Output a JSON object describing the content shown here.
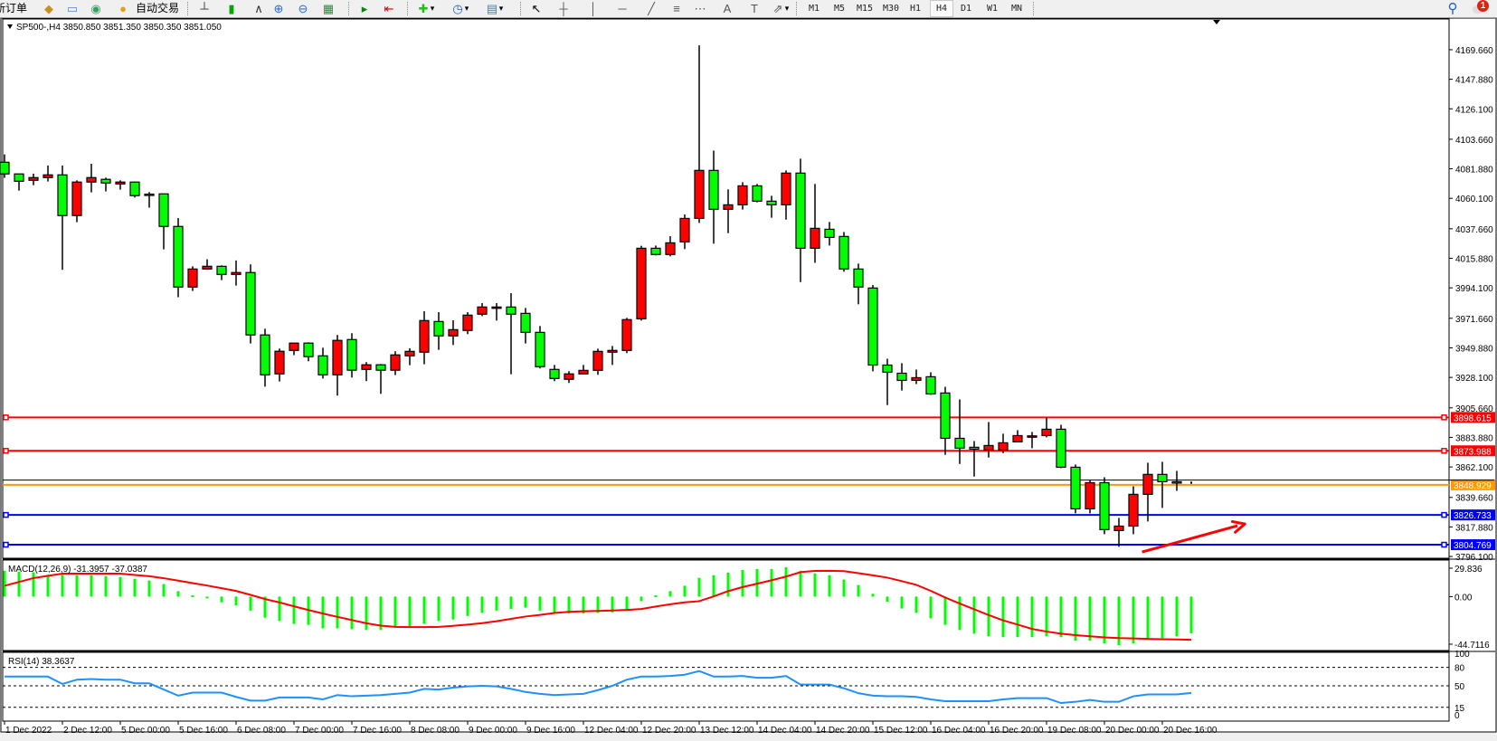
{
  "toolbar": {
    "new_order_label": "新订单",
    "autotrading_label": "自动交易",
    "icons": [
      "new-order-icon",
      "market-watch-icon",
      "navigator-icon",
      "signals-icon",
      "autotrading-icon",
      "bar-chart-icon",
      "candlestick-icon",
      "line-chart-icon",
      "zoom-in-icon",
      "zoom-out-icon",
      "tile-windows-icon",
      "autoscroll-icon",
      "chart-shift-icon",
      "indicators-icon",
      "periods-icon",
      "templates-icon",
      "cursor-icon",
      "crosshair-icon",
      "vertical-line-icon",
      "horizontal-line-icon",
      "trendline-icon",
      "equidistant-channel-icon",
      "fibonacci-icon",
      "text-icon",
      "text-label-icon",
      "arrows-icon",
      "search-icon",
      "notifications-icon"
    ],
    "timeframes": [
      "M1",
      "M5",
      "M15",
      "M30",
      "H1",
      "H4",
      "D1",
      "W1",
      "MN"
    ],
    "active_timeframe": "H4",
    "notification_count": "1"
  },
  "chart_data": {
    "type": "candlestick",
    "symbol_header": "SP500-,H4  3850.850 3851.350 3850.350 3851.050",
    "colors": {
      "bull": "#FF0000",
      "bear": "#00FF00",
      "wick": "#000000",
      "background": "#FFFFFF"
    },
    "ylim": [
      3794.8,
      4192.3
    ],
    "y_ticks": [
      "4169.660",
      "4147.880",
      "4126.100",
      "4103.660",
      "4081.880",
      "4060.100",
      "4037.660",
      "4015.880",
      "3994.100",
      "3971.660",
      "3949.880",
      "3928.100",
      "3905.660",
      "3883.880",
      "3862.100",
      "3839.660",
      "3817.880",
      "3796.100"
    ],
    "x_tick_every_bars": 4,
    "x_ticks": [
      "1 Dec 2022",
      "2 Dec 12:00",
      "5 Dec 00:00",
      "5 Dec 16:00",
      "6 Dec 08:00",
      "7 Dec 00:00",
      "7 Dec 16:00",
      "8 Dec 08:00",
      "9 Dec 00:00",
      "9 Dec 16:00",
      "12 Dec 04:00",
      "12 Dec 20:00",
      "13 Dec 12:00",
      "14 Dec 04:00",
      "14 Dec 20:00",
      "15 Dec 12:00",
      "16 Dec 04:00",
      "16 Dec 20:00",
      "19 Dec 08:00",
      "20 Dec 00:00",
      "20 Dec 16:00"
    ],
    "ohlc": [
      [
        4086.7,
        4092.5,
        4075.2,
        4078.1
      ],
      [
        4078.1,
        4078.1,
        4065.8,
        4072.7
      ],
      [
        4073.4,
        4078.3,
        4069.8,
        4075.4
      ],
      [
        4075.4,
        4084.3,
        4072.5,
        4077.4
      ],
      [
        4077.4,
        4084.3,
        4007.4,
        4047.4
      ],
      [
        4047.4,
        4073.4,
        4042.5,
        4072.1
      ],
      [
        4072.1,
        4085.6,
        4064.5,
        4075.4
      ],
      [
        4074.1,
        4075.4,
        4065.2,
        4071.4
      ],
      [
        4070.7,
        4073.4,
        4066.5,
        4072.1
      ],
      [
        4072.1,
        4072.1,
        4060.7,
        4062.1
      ],
      [
        4063.2,
        4064.7,
        4053.2,
        4063.0
      ],
      [
        4063.4,
        4063.4,
        4022.5,
        4039.4
      ],
      [
        4039.4,
        4045.6,
        3987.2,
        3994.7
      ],
      [
        3994.7,
        4010.0,
        3991.8,
        4008.0
      ],
      [
        4008.0,
        4015.2,
        4007.4,
        4010.0
      ],
      [
        4010.0,
        4010.7,
        3999.8,
        4004.0
      ],
      [
        4004.0,
        4014.3,
        3995.8,
        4005.4
      ],
      [
        4005.4,
        4011.4,
        3953.1,
        3959.4
      ],
      [
        3959.4,
        3964.0,
        3921.3,
        3930.0
      ],
      [
        3930.7,
        3949.4,
        3925.1,
        3947.4
      ],
      [
        3948.0,
        3953.4,
        3944.5,
        3953.4
      ],
      [
        3953.4,
        3954.0,
        3940.0,
        3943.4
      ],
      [
        3944.0,
        3950.0,
        3927.3,
        3930.0
      ],
      [
        3930.0,
        3959.4,
        3914.7,
        3955.4
      ],
      [
        3956.0,
        3960.7,
        3928.0,
        3933.4
      ],
      [
        3934.0,
        3939.4,
        3925.4,
        3937.4
      ],
      [
        3937.4,
        3938.0,
        3916.0,
        3933.4
      ],
      [
        3933.4,
        3947.4,
        3929.8,
        3944.7
      ],
      [
        3944.0,
        3949.6,
        3937.1,
        3947.3
      ],
      [
        3946.7,
        3976.9,
        3937.8,
        3970.0
      ],
      [
        3969.3,
        3976.2,
        3948.4,
        3958.7
      ],
      [
        3958.7,
        3970.2,
        3952.0,
        3963.3
      ],
      [
        3962.7,
        3976.2,
        3960.0,
        3974.0
      ],
      [
        3974.7,
        3982.9,
        3973.3,
        3980.0
      ],
      [
        3980.0,
        3982.9,
        3970.0,
        3980.0
      ],
      [
        3980.0,
        3990.2,
        3930.4,
        3974.7
      ],
      [
        3975.3,
        3979.3,
        3953.1,
        3961.3
      ],
      [
        3961.3,
        3966.0,
        3934.7,
        3936.0
      ],
      [
        3934.0,
        3937.3,
        3925.3,
        3927.3
      ],
      [
        3926.7,
        3932.7,
        3924.0,
        3930.7
      ],
      [
        3930.7,
        3937.3,
        3930.7,
        3933.3
      ],
      [
        3933.3,
        3949.3,
        3930.0,
        3947.3
      ],
      [
        3946.7,
        3951.3,
        3937.3,
        3948.0
      ],
      [
        3948.0,
        3972.0,
        3946.0,
        3970.7
      ],
      [
        3971.3,
        4025.1,
        3970.0,
        4023.3
      ],
      [
        4023.3,
        4025.3,
        4018.0,
        4018.7
      ],
      [
        4018.7,
        4032.2,
        4017.3,
        4027.3
      ],
      [
        4028.0,
        4048.2,
        4022.7,
        4045.3
      ],
      [
        4045.3,
        4172.9,
        4042.0,
        4080.7
      ],
      [
        4080.7,
        4095.3,
        4026.7,
        4052.0
      ],
      [
        4052.0,
        4066.7,
        4034.4,
        4055.3
      ],
      [
        4055.3,
        4072.0,
        4051.8,
        4069.3
      ],
      [
        4069.3,
        4070.7,
        4057.1,
        4058.0
      ],
      [
        4058.0,
        4062.0,
        4045.8,
        4055.3
      ],
      [
        4055.3,
        4080.7,
        4044.4,
        4078.7
      ],
      [
        4078.7,
        4089.3,
        3998.4,
        4023.3
      ],
      [
        4023.3,
        4070.7,
        4012.6,
        4038.0
      ],
      [
        4037.3,
        4042.7,
        4025.3,
        4031.3
      ],
      [
        4032.0,
        4035.3,
        4006.0,
        4008.0
      ],
      [
        4008.0,
        4012.0,
        3982.0,
        3994.7
      ],
      [
        3994.0,
        3996.2,
        3932.6,
        3937.2
      ],
      [
        3937.2,
        3941.9,
        3907.7,
        3931.9
      ],
      [
        3931.2,
        3938.6,
        3918.4,
        3925.9
      ],
      [
        3925.9,
        3933.9,
        3923.2,
        3927.9
      ],
      [
        3928.6,
        3931.9,
        3915.2,
        3915.9
      ],
      [
        3916.6,
        3921.2,
        3871.0,
        3883.2
      ],
      [
        3883.2,
        3911.9,
        3864.3,
        3875.9
      ],
      [
        3876.6,
        3881.2,
        3855.0,
        3875.2
      ],
      [
        3874.6,
        3895.2,
        3869.0,
        3877.9
      ],
      [
        3874.6,
        3886.6,
        3872.3,
        3879.9
      ],
      [
        3880.6,
        3889.2,
        3880.6,
        3885.2
      ],
      [
        3885.0,
        3887.9,
        3875.9,
        3885.0
      ],
      [
        3885.2,
        3898.4,
        3883.9,
        3889.9
      ],
      [
        3889.9,
        3893.2,
        3861.2,
        3861.9
      ],
      [
        3861.9,
        3863.9,
        3827.9,
        3831.2
      ],
      [
        3831.2,
        3852.5,
        3827.9,
        3850.5
      ],
      [
        3850.5,
        3854.5,
        3812.5,
        3815.9
      ],
      [
        3815.2,
        3824.5,
        3803.2,
        3818.5
      ],
      [
        3818.5,
        3847.9,
        3812.5,
        3841.9
      ],
      [
        3841.9,
        3865.2,
        3821.9,
        3856.6
      ],
      [
        3856.6,
        3865.9,
        3831.9,
        3851.2
      ],
      [
        3851.2,
        3859.2,
        3844.5,
        3851.0
      ],
      [
        3850.85,
        3851.35,
        3850.35,
        3851.05
      ]
    ],
    "levels": [
      {
        "price": 3898.615,
        "label": "3898.615",
        "color": "#FF0000",
        "marker": true
      },
      {
        "price": 3873.988,
        "label": "3873.988",
        "color": "#FF0000",
        "marker": true
      },
      {
        "price": 3848.929,
        "label": "3848.929",
        "color": "#FF9900",
        "marker": false
      },
      {
        "price": 3826.733,
        "label": "3826.733",
        "color": "#0000FF",
        "marker": true
      },
      {
        "price": 3804.769,
        "label": "3804.769",
        "color": "#0000FF",
        "marker": true
      }
    ],
    "price_line": {
      "price": 3851.05,
      "color": "#000000"
    },
    "arrow": {
      "color": "#FF0000",
      "from": {
        "bar": 78.6,
        "price": 3799.4
      },
      "to": {
        "bar": 85.7,
        "price": 3820.1
      }
    },
    "macd": {
      "label": "MACD(12,26,9) -31.3957 -37.0387",
      "ylim": [
        -44.7116,
        29.836
      ],
      "y_ticks": [
        "29.836",
        "0.00",
        "-44.7116"
      ],
      "y_tick_values": [
        29.836,
        0,
        -44.7116
      ],
      "histogram_color": "#00FF00",
      "signal_color": "#FF0000",
      "histogram": [
        22.2,
        21.4,
        20.9,
        18.9,
        18.9,
        18.4,
        18.4,
        17.6,
        16.8,
        15.3,
        13.8,
        10.8,
        4.7,
        1.1,
        -1.5,
        -4.9,
        -7.5,
        -12.0,
        -18.1,
        -20.9,
        -23.4,
        -24.2,
        -27.2,
        -27.2,
        -28.0,
        -28.7,
        -28.7,
        -26.2,
        -25.7,
        -23.4,
        -20.9,
        -19.6,
        -16.6,
        -14.0,
        -12.0,
        -10.5,
        -9.5,
        -12.0,
        -14.0,
        -14.5,
        -14.5,
        -14.0,
        -13.5,
        -11.4,
        -3.9,
        1.1,
        4.7,
        9.3,
        16.1,
        18.4,
        20.6,
        22.9,
        23.7,
        23.7,
        25.2,
        22.2,
        19.9,
        18.4,
        14.6,
        10.0,
        2.4,
        -4.4,
        -10.2,
        -14.0,
        -18.6,
        -24.2,
        -28.7,
        -31.8,
        -34.1,
        -34.8,
        -34.8,
        -34.8,
        -34.1,
        -34.8,
        -37.8,
        -37.8,
        -40.1,
        -41.7,
        -40.1,
        -36.3,
        -35.6,
        -34.1,
        -31.3957
      ],
      "signal": [
        9.3,
        12.6,
        15.9,
        17.8,
        19.7,
        19.7,
        19.7,
        19.7,
        19.7,
        18.6,
        17.5,
        15.8,
        13.7,
        11.6,
        9.5,
        7.2,
        4.9,
        1.5,
        -2.1,
        -5.0,
        -8.3,
        -11.5,
        -14.5,
        -17.4,
        -20.1,
        -22.9,
        -24.9,
        -26.0,
        -26.2,
        -26.2,
        -26.0,
        -25.1,
        -24.0,
        -22.8,
        -21.1,
        -19.1,
        -17.1,
        -15.7,
        -14.0,
        -13.1,
        -12.6,
        -12.3,
        -11.9,
        -11.4,
        -10.6,
        -8.5,
        -6.6,
        -4.9,
        -3.9,
        0.2,
        4.7,
        8.2,
        11.1,
        14.0,
        17.2,
        21.0,
        22.1,
        22.2,
        21.9,
        20.1,
        18.3,
        16.3,
        13.3,
        10.1,
        5.0,
        -0.8,
        -5.9,
        -10.9,
        -15.8,
        -20.4,
        -24.0,
        -27.7,
        -30.0,
        -31.8,
        -33.1,
        -34.0,
        -35.0,
        -35.6,
        -35.9,
        -36.3,
        -36.6,
        -36.8,
        -37.0387
      ]
    },
    "rsi": {
      "label": "RSI(14) 38.3637",
      "ylim": [
        0,
        100
      ],
      "y_ticks": [
        "100",
        "80",
        "50",
        "15",
        "0"
      ],
      "y_tick_values": [
        100,
        80,
        50,
        15,
        0
      ],
      "levels": [
        80,
        50,
        15
      ],
      "color": "#1E90FF",
      "values": [
        65,
        65,
        65,
        65,
        53,
        60,
        61,
        60,
        60,
        54,
        54,
        44,
        34,
        39,
        39,
        39,
        32,
        26,
        26,
        31,
        31,
        31,
        28,
        35,
        33,
        34,
        35,
        37,
        39,
        45,
        44,
        47,
        49,
        50,
        49,
        45,
        40,
        37,
        35,
        36,
        37,
        43,
        50,
        60,
        65,
        65,
        66,
        68,
        74,
        65,
        65,
        66,
        63,
        63,
        66,
        52,
        52,
        52,
        46,
        38,
        34,
        33,
        33,
        32,
        28,
        25,
        25,
        25,
        25,
        28,
        30,
        30,
        30,
        22,
        24,
        27,
        24,
        24,
        33,
        36,
        36,
        36,
        38.3637
      ]
    }
  }
}
